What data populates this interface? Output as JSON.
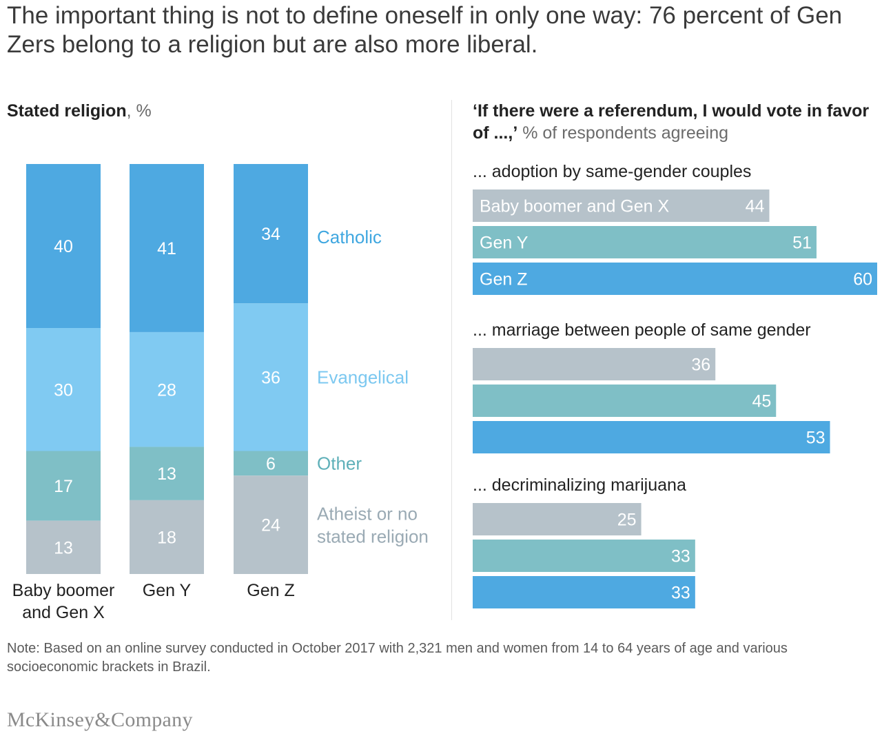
{
  "title": "The important thing is not to define oneself in only one way: 76 percent of Gen Zers belong to a religion but are also more liberal.",
  "left_heading": {
    "bold": "Stated religion",
    "light": ", %"
  },
  "right_heading": {
    "bold": "‘If there were a referendum, I would vote in favor of ...,’",
    "light": " % of respondents agreeing"
  },
  "colors": {
    "catholic": "#4ea9e1",
    "evangelical": "#80caf2",
    "other": "#7fbfc6",
    "atheist": "#b6c2ca",
    "boomer_bar": "#b6c2ca",
    "geny_bar": "#7fbfc6",
    "genz_bar": "#4ea9e1"
  },
  "chart_data": [
    {
      "type": "bar",
      "subtype": "stacked-100",
      "title": "Stated religion, %",
      "categories": [
        {
          "lines": [
            "Baby boomer",
            "and Gen X"
          ]
        },
        {
          "lines": [
            "Gen Y"
          ]
        },
        {
          "lines": [
            "Gen Z"
          ]
        }
      ],
      "series": [
        {
          "name": "Catholic",
          "label_lines": [
            "Catholic"
          ],
          "values": [
            40,
            41,
            34
          ],
          "color": "#4ea9e1",
          "label_color": "#3fa7e0",
          "value_color": "#ffffff"
        },
        {
          "name": "Evangelical",
          "label_lines": [
            "Evangelical"
          ],
          "values": [
            30,
            28,
            36
          ],
          "color": "#80caf2",
          "label_color": "#7cc8f0",
          "value_color": "#ffffff"
        },
        {
          "name": "Other",
          "label_lines": [
            "Other"
          ],
          "values": [
            17,
            13,
            6
          ],
          "color": "#7fbfc6",
          "label_color": "#5fb0b9",
          "value_color": "#ffffff"
        },
        {
          "name": "Atheist or no stated religion",
          "label_lines": [
            "Atheist or no",
            "stated religion"
          ],
          "values": [
            13,
            18,
            24
          ],
          "color": "#b6c2ca",
          "label_color": "#9aaab4",
          "value_color": "#ffffff"
        }
      ],
      "ylim": [
        0,
        100
      ]
    },
    {
      "type": "bar",
      "subtype": "horizontal-grouped",
      "title": "If there were a referendum, I would vote in favor of ..., % of respondents agreeing",
      "xlim": [
        0,
        60
      ],
      "groups": [
        {
          "label": "... adoption by same-gender couples",
          "bars": [
            {
              "name": "Baby boomer and Gen X",
              "show_name": true,
              "value": 44,
              "color": "#b6c2ca"
            },
            {
              "name": "Gen Y",
              "show_name": true,
              "value": 51,
              "color": "#7fbfc6"
            },
            {
              "name": "Gen Z",
              "show_name": true,
              "value": 60,
              "color": "#4ea9e1"
            }
          ]
        },
        {
          "label": "... marriage between people of same gender",
          "bars": [
            {
              "name": "Baby boomer and Gen X",
              "show_name": false,
              "value": 36,
              "color": "#b6c2ca"
            },
            {
              "name": "Gen Y",
              "show_name": false,
              "value": 45,
              "color": "#7fbfc6"
            },
            {
              "name": "Gen Z",
              "show_name": false,
              "value": 53,
              "color": "#4ea9e1"
            }
          ]
        },
        {
          "label": "... decriminalizing marijuana",
          "bars": [
            {
              "name": "Baby boomer and Gen X",
              "show_name": false,
              "value": 25,
              "color": "#b6c2ca"
            },
            {
              "name": "Gen Y",
              "show_name": false,
              "value": 33,
              "color": "#7fbfc6"
            },
            {
              "name": "Gen Z",
              "show_name": false,
              "value": 33,
              "color": "#4ea9e1"
            }
          ]
        }
      ]
    }
  ],
  "note": "Note: Based on an online survey conducted in October 2017 with 2,321 men and women from 14 to 64 years of age and various socioeconomic brackets in Brazil.",
  "logo": "McKinsey&Company"
}
